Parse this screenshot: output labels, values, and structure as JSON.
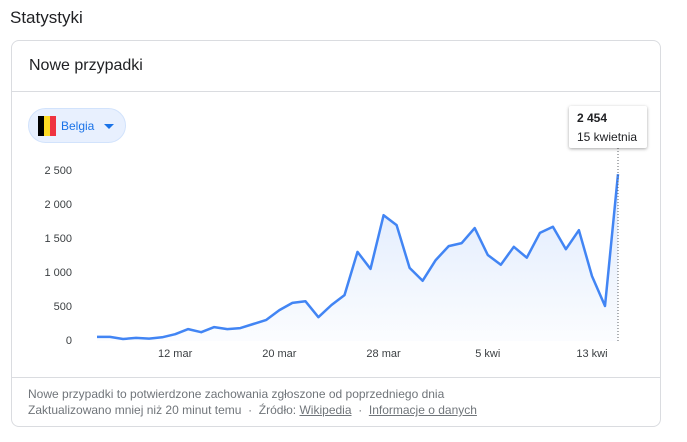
{
  "page_title": "Statystyki",
  "card_title": "Nowe przypadki",
  "country": "Belgia",
  "tooltip": {
    "label": "2 454",
    "date": "15 kwietnia"
  },
  "footer": {
    "note": "Nowe przypadki to potwierdzone zachowania zgłoszone od poprzedniego dnia",
    "updated": "Zaktualizowano mniej niż 20 minut temu",
    "separator": "·",
    "source_label": "Źródło:",
    "source_link": "Wikipedia",
    "info_link": "Informacje o danych"
  },
  "chart_data": {
    "type": "area-line",
    "categories": [
      null,
      null,
      null,
      null,
      null,
      null,
      "12 mar",
      null,
      null,
      null,
      null,
      null,
      null,
      null,
      "20 mar",
      null,
      null,
      null,
      null,
      null,
      null,
      null,
      "28 mar",
      null,
      null,
      null,
      null,
      null,
      null,
      null,
      "5 kwi",
      null,
      null,
      null,
      null,
      null,
      null,
      null,
      "13 kwi",
      null,
      null
    ],
    "values": [
      60,
      60,
      30,
      45,
      35,
      55,
      100,
      175,
      130,
      205,
      175,
      190,
      250,
      310,
      455,
      560,
      585,
      350,
      530,
      675,
      1310,
      1060,
      1850,
      1705,
      1075,
      885,
      1190,
      1395,
      1440,
      1660,
      1265,
      1120,
      1385,
      1225,
      1590,
      1680,
      1350,
      1630,
      955,
      515,
      2454
    ],
    "color": "#4285f4",
    "ylim": [
      0,
      2500
    ],
    "yticks": [
      0,
      500,
      {
        "value": 1000,
        "label": "1 000"
      },
      {
        "value": 1500,
        "label": "1 500"
      },
      {
        "value": 2000,
        "label": "2 000"
      },
      {
        "value": 2500,
        "label": "2 500"
      }
    ]
  }
}
